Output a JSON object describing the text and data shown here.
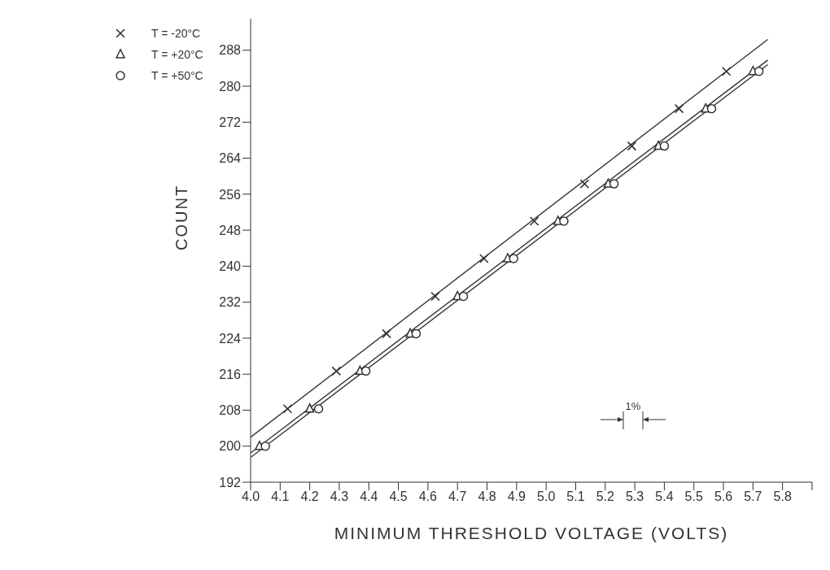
{
  "chart_data": {
    "type": "scatter",
    "xlabel": "MINIMUM THRESHOLD VOLTAGE (VOLTS)",
    "ylabel": "COUNT",
    "xlim": [
      4.0,
      5.9
    ],
    "xticks": [
      {
        "value": 4.0,
        "label": "4.0"
      },
      4.1,
      4.2,
      4.3,
      4.4,
      4.5,
      4.6,
      4.7,
      4.8,
      4.9,
      {
        "value": 5.0,
        "label": "5.0"
      },
      5.1,
      5.2,
      5.3,
      5.4,
      5.5,
      5.6,
      5.7,
      5.8,
      {
        "value": 5.9,
        "label": null
      }
    ],
    "ylim": [
      192,
      295
    ],
    "yticks": [
      192,
      200,
      208,
      216,
      224,
      232,
      240,
      248,
      256,
      264,
      272,
      280,
      288
    ],
    "legend": "top left",
    "series": [
      {
        "name": "T = -20°C",
        "color": "#333333",
        "marker": "cross",
        "x": [
          4.125,
          4.29,
          4.46,
          4.625,
          4.79,
          4.96,
          5.13,
          5.29,
          5.45,
          5.61
        ],
        "values": [
          208.3,
          216.7,
          225,
          233.3,
          241.7,
          250,
          258.3,
          266.7,
          275,
          283.3
        ]
      },
      {
        "name": "T = +20°C",
        "color": "#333333",
        "marker": "triangle",
        "x": [
          4.03,
          4.2,
          4.37,
          4.54,
          4.7,
          4.87,
          5.04,
          5.21,
          5.38,
          5.54,
          5.7
        ],
        "values": [
          200,
          208.3,
          216.7,
          225,
          233.3,
          241.7,
          250,
          258.3,
          266.7,
          275,
          283.3
        ]
      },
      {
        "name": "T = +50°C",
        "color": "#333333",
        "marker": "circle",
        "x": [
          4.05,
          4.23,
          4.39,
          4.56,
          4.72,
          4.89,
          5.06,
          5.23,
          5.4,
          5.56,
          5.72
        ],
        "values": [
          200,
          208.3,
          216.7,
          225,
          233.3,
          241.7,
          250,
          258.3,
          266.7,
          275,
          283.3
        ]
      },
      {
        "type": "line",
        "color": "#333333",
        "marker": "none",
        "line_style": "solid",
        "x": [
          4.0,
          5.75
        ],
        "values": [
          202.0,
          290.4
        ]
      },
      {
        "type": "line",
        "color": "#333333",
        "marker": "none",
        "line_style": "solid",
        "x": [
          4.0,
          5.75
        ],
        "values": [
          198.5,
          285.8
        ]
      },
      {
        "type": "line",
        "color": "#333333",
        "marker": "none",
        "line_style": "solid",
        "x": [
          4.0,
          5.75
        ],
        "values": [
          197.5,
          284.8
        ]
      }
    ],
    "annotations": [
      "1%"
    ]
  }
}
